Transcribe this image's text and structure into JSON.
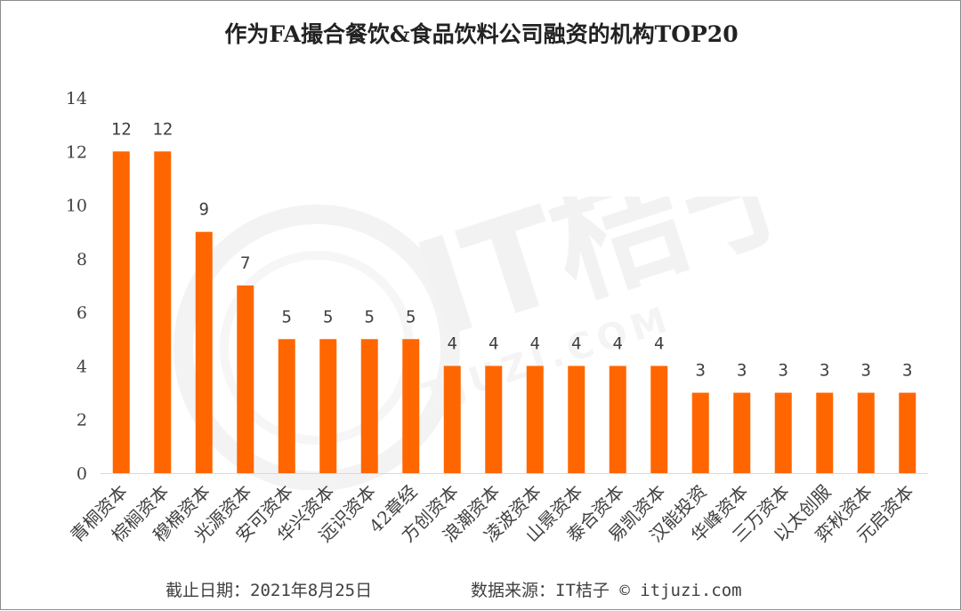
{
  "title": "作为FA撮合餐饮&食品饮料公司融资的机构TOP20",
  "footer": {
    "date": "截止日期：2021年8月25日",
    "source": "数据来源：IT桔子 © itjuzi.com"
  },
  "watermark": {
    "logo_text": "IT桔子",
    "url_text": "ITJUZI.COM"
  },
  "colors": {
    "bar": "#ff6600",
    "axis": "#d9d9d9",
    "text": "#404040"
  },
  "chart_data": {
    "type": "bar",
    "title": "作为FA撮合餐饮&食品饮料公司融资的机构TOP20",
    "categories": [
      "青桐资本",
      "棕榈资本",
      "穆棉资本",
      "光源资本",
      "安可资本",
      "华兴资本",
      "远识资本",
      "42章经",
      "方创资本",
      "浪潮资本",
      "凌波资本",
      "山景资本",
      "泰合资本",
      "易凯资本",
      "汉能投资",
      "华峰资本",
      "三万资本",
      "以太创服",
      "弈秋资本",
      "元启资本"
    ],
    "values": [
      12,
      12,
      9,
      7,
      5,
      5,
      5,
      5,
      4,
      4,
      4,
      4,
      4,
      4,
      3,
      3,
      3,
      3,
      3,
      3
    ],
    "data_labels": [
      "12",
      "12",
      "9",
      "7",
      "5",
      "5",
      "5",
      "5",
      "4",
      "4",
      "4",
      "4",
      "4",
      "4",
      "3",
      "3",
      "3",
      "3",
      "3",
      "3"
    ],
    "ylim": [
      0,
      14
    ],
    "yticks": [
      "0",
      "2",
      "4",
      "6",
      "8",
      "10",
      "12",
      "14"
    ],
    "ytick_values": [
      0,
      2,
      4,
      6,
      8,
      10,
      12,
      14
    ],
    "grid": false,
    "legend": "none",
    "xlabel": "",
    "ylabel": ""
  }
}
